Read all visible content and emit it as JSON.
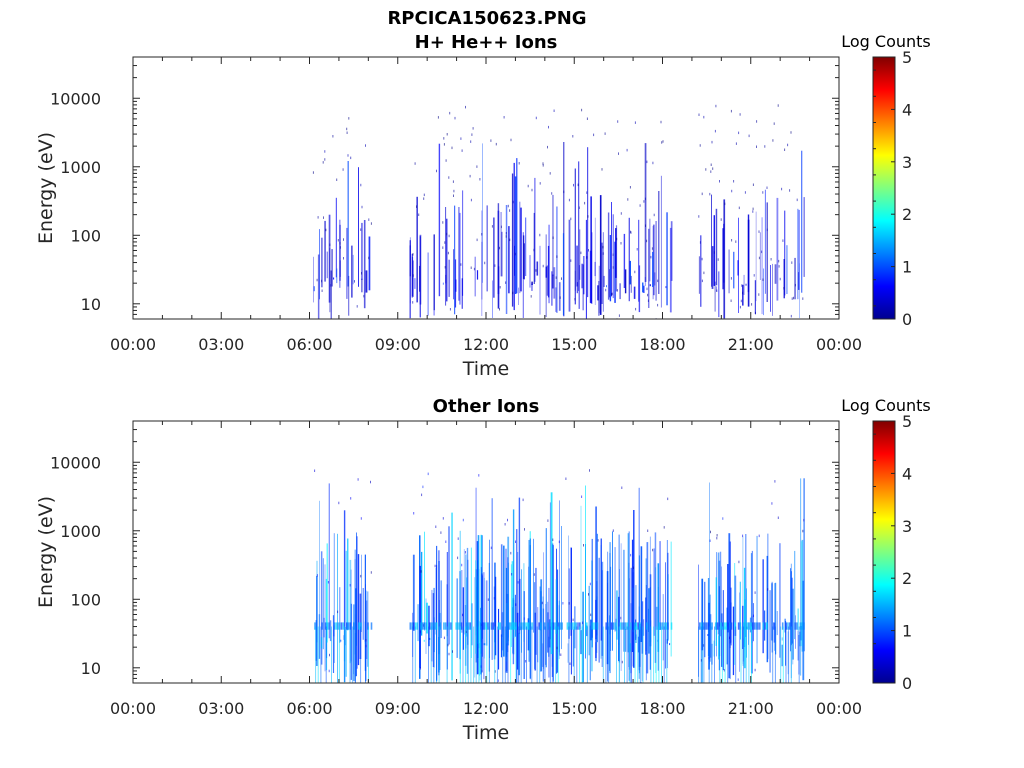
{
  "figure": {
    "title": "RPCICA150623.PNG"
  },
  "chart_data": [
    {
      "type": "heatmap",
      "title": "H+ He++ Ions",
      "xlabel": "Time",
      "ylabel": "Energy (eV)",
      "x_ticks": [
        "00:00",
        "03:00",
        "06:00",
        "09:00",
        "12:00",
        "15:00",
        "18:00",
        "21:00",
        "00:00"
      ],
      "xlim_hours": [
        0,
        24
      ],
      "y_scale": "log",
      "y_ticks": [
        10,
        100,
        1000,
        10000
      ],
      "y_tick_labels": [
        "10",
        "100",
        "1000",
        "10000"
      ],
      "ylim": [
        6,
        40000
      ],
      "colorbar": {
        "label": "Log Counts",
        "ticks": [
          "0",
          "1",
          "2",
          "3",
          "4",
          "5"
        ],
        "range": [
          0,
          5
        ],
        "colormap": "jet"
      },
      "activity_intervals_hours": [
        [
          6.1,
          8.1
        ],
        [
          9.4,
          22.8
        ]
      ],
      "data_gap_hours": [
        [
          8.1,
          9.4
        ],
        [
          18.3,
          19.2
        ]
      ],
      "dominant_energy_range_eV": [
        6,
        400
      ],
      "typical_log_counts": 0.3,
      "max_log_counts": 1.0
    },
    {
      "type": "heatmap",
      "title": "Other Ions",
      "xlabel": "Time",
      "ylabel": "Energy (eV)",
      "x_ticks": [
        "00:00",
        "03:00",
        "06:00",
        "09:00",
        "12:00",
        "15:00",
        "18:00",
        "21:00",
        "00:00"
      ],
      "xlim_hours": [
        0,
        24
      ],
      "y_scale": "log",
      "y_ticks": [
        10,
        100,
        1000,
        10000
      ],
      "y_tick_labels": [
        "10",
        "100",
        "1000",
        "10000"
      ],
      "ylim": [
        6,
        40000
      ],
      "colorbar": {
        "label": "Log Counts",
        "ticks": [
          "0",
          "1",
          "2",
          "3",
          "4",
          "5"
        ],
        "range": [
          0,
          5
        ],
        "colormap": "jet"
      },
      "activity_intervals_hours": [
        [
          6.1,
          8.1
        ],
        [
          9.4,
          22.8
        ]
      ],
      "data_gap_hours": [
        [
          8.1,
          9.4
        ],
        [
          18.3,
          19.2
        ]
      ],
      "dominant_energy_range_eV": [
        6,
        1000
      ],
      "band_energy_eV": 40,
      "typical_log_counts": 0.8,
      "max_log_counts": 1.8
    }
  ]
}
